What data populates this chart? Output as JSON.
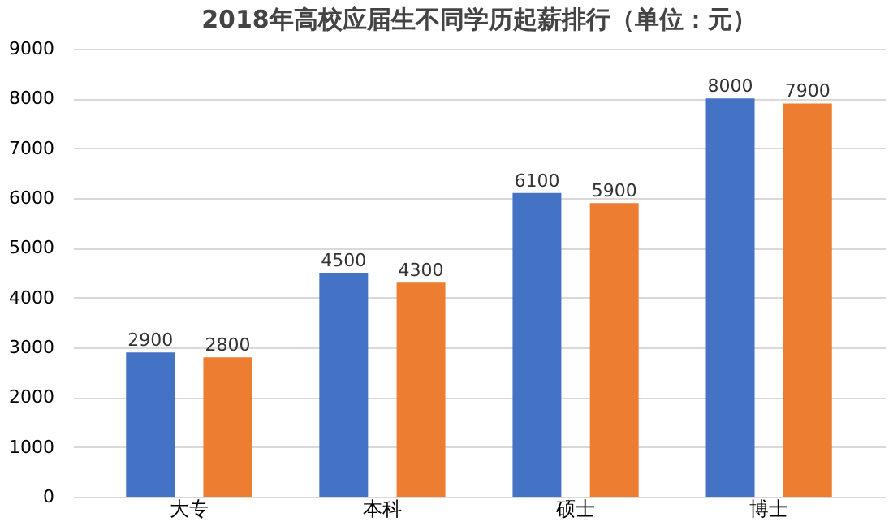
{
  "chart_data": {
    "type": "bar",
    "title": "2018年高校应届生不同学历起薪排行（单位：元）",
    "categories": [
      "大专",
      "本科",
      "硕士",
      "博士"
    ],
    "series": [
      {
        "color": "#4472c4",
        "values": [
          2900,
          4500,
          6100,
          8000
        ]
      },
      {
        "color": "#ed7d31",
        "values": [
          2800,
          4300,
          5900,
          7900
        ]
      }
    ],
    "ylim": [
      0,
      9000
    ],
    "yticks": [
      0,
      1000,
      2000,
      3000,
      4000,
      5000,
      6000,
      7000,
      8000,
      9000
    ],
    "grid": "y",
    "data_labels": true,
    "legend": false
  }
}
